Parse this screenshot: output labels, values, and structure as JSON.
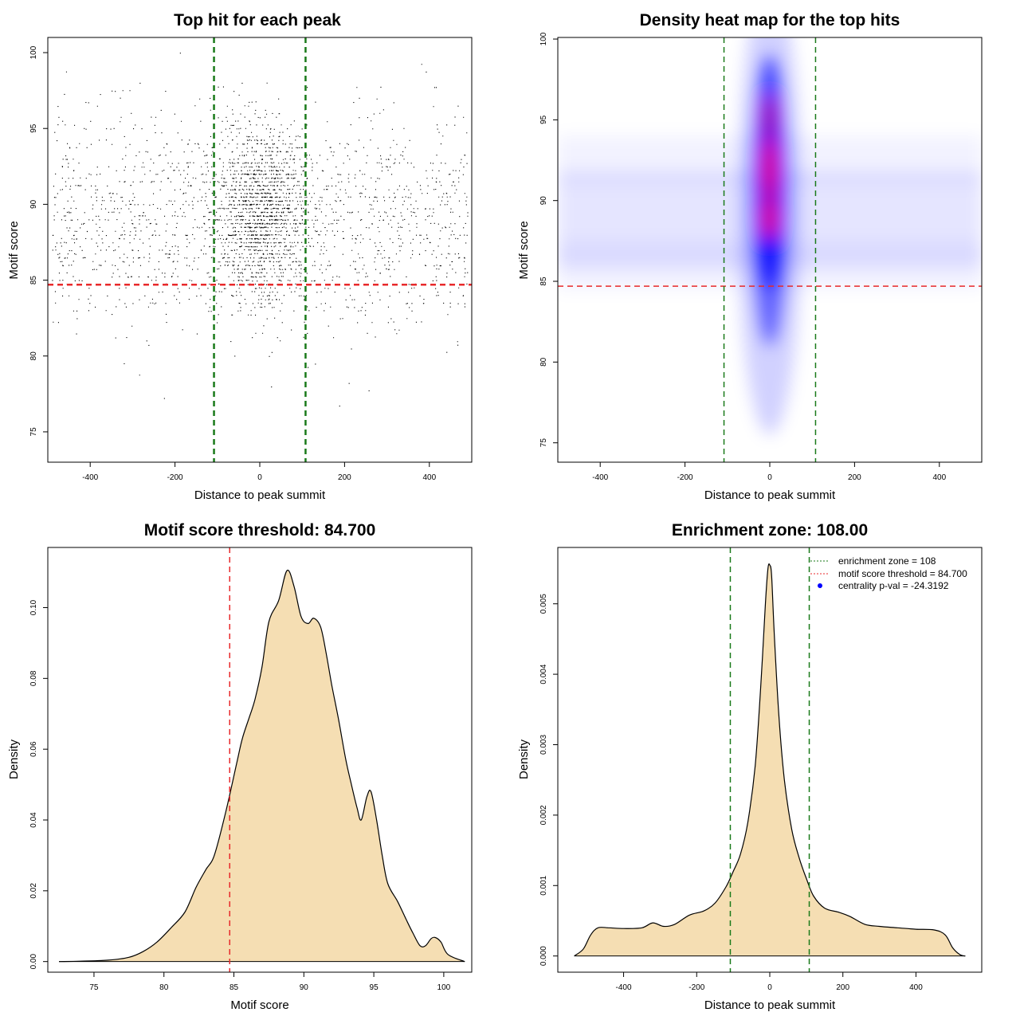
{
  "chart_data": [
    {
      "id": "scatter",
      "type": "scatter",
      "title": "Top hit for each peak",
      "xlabel": "Distance to peak summit",
      "ylabel": "Motif score",
      "xlim": [
        -500,
        500
      ],
      "ylim": [
        73,
        101
      ],
      "xticks": [
        -400,
        -200,
        0,
        200,
        400
      ],
      "yticks": [
        75,
        80,
        85,
        90,
        95,
        100
      ],
      "hlines": [
        {
          "y": 84.7,
          "color": "#e8292b",
          "style": "dashed"
        }
      ],
      "vlines": [
        {
          "x": -108,
          "color": "#1a7a1a",
          "style": "dashed"
        },
        {
          "x": 108,
          "color": "#1a7a1a",
          "style": "dashed"
        }
      ],
      "points": {
        "n": 9000,
        "description_of_distribution": "concentrated at x=0, y mean ~89.5"
      }
    },
    {
      "id": "heatmap",
      "type": "heatmap",
      "title": "Density heat map for the top hits",
      "xlabel": "Distance to peak summit",
      "ylabel": "Motif score",
      "xlim": [
        -500,
        500
      ],
      "ylim": [
        73.8,
        100.1
      ],
      "xticks": [
        -400,
        -200,
        0,
        200,
        400
      ],
      "yticks": [
        75,
        80,
        85,
        90,
        95,
        100
      ],
      "hlines": [
        {
          "y": 84.7,
          "color": "#e8292b",
          "style": "dashed"
        }
      ],
      "vlines": [
        {
          "x": -108,
          "color": "#1a7a1a",
          "style": "dashed"
        },
        {
          "x": 108,
          "color": "#1a7a1a",
          "style": "dashed"
        }
      ],
      "density_peaks": [
        {
          "x": 0,
          "y": 89
        },
        {
          "x": 0,
          "y": 91.5
        },
        {
          "x": 0,
          "y": 95
        }
      ]
    },
    {
      "id": "motif_density",
      "type": "area",
      "title": "Motif score threshold: 84.700",
      "xlabel": "Motif score",
      "ylabel": "Density",
      "xlim": [
        71.7,
        102
      ],
      "ylim": [
        -0.003,
        0.117
      ],
      "xticks": [
        75,
        80,
        85,
        90,
        95,
        100
      ],
      "yticks": [
        0.0,
        0.02,
        0.04,
        0.06,
        0.08,
        0.1
      ],
      "ytick_labels": [
        "0.00",
        "0.02",
        "0.04",
        "0.06",
        "0.08",
        "0.10"
      ],
      "vlines": [
        {
          "x": 84.7,
          "color": "#e8292b",
          "style": "dashed"
        }
      ],
      "x": [
        72.5,
        74,
        76,
        77.5,
        78.5,
        79.5,
        80.5,
        81.5,
        82.3,
        83,
        83.6,
        84.4,
        85.2,
        85.6,
        86.1,
        86.5,
        87,
        87.5,
        88.2,
        88.8,
        89.3,
        89.8,
        90.3,
        90.7,
        91.2,
        91.6,
        92,
        92.5,
        93,
        93.4,
        93.8,
        94.1,
        94.5,
        94.8,
        95.2,
        95.6,
        96,
        96.7,
        97.3,
        97.8,
        98.3,
        98.7,
        99.1,
        99.4,
        99.8,
        100.3,
        101.5
      ],
      "y": [
        0.0,
        0.0001,
        0.0004,
        0.0012,
        0.0028,
        0.0055,
        0.0095,
        0.014,
        0.021,
        0.026,
        0.03,
        0.042,
        0.056,
        0.063,
        0.069,
        0.074,
        0.083,
        0.096,
        0.102,
        0.1105,
        0.106,
        0.0975,
        0.0955,
        0.097,
        0.0945,
        0.087,
        0.078,
        0.068,
        0.057,
        0.05,
        0.0435,
        0.04,
        0.0465,
        0.048,
        0.04,
        0.03,
        0.022,
        0.017,
        0.012,
        0.008,
        0.0045,
        0.0045,
        0.0065,
        0.0068,
        0.0055,
        0.002,
        0.0
      ]
    },
    {
      "id": "enrichment",
      "type": "area",
      "title": "Enrichment zone: 108.00",
      "xlabel": "Distance to peak summit",
      "ylabel": "Density",
      "xlim": [
        -580,
        580
      ],
      "ylim": [
        -0.00023,
        0.0058
      ],
      "xticks": [
        -400,
        -200,
        0,
        200,
        400
      ],
      "yticks": [
        0.0,
        0.001,
        0.002,
        0.003,
        0.004,
        0.005
      ],
      "ytick_labels": [
        "0.000",
        "0.001",
        "0.002",
        "0.003",
        "0.004",
        "0.005"
      ],
      "vlines": [
        {
          "x": -108,
          "color": "#1a7a1a",
          "style": "dashed"
        },
        {
          "x": 108,
          "color": "#1a7a1a",
          "style": "dashed"
        }
      ],
      "x": [
        -535,
        -510,
        -490,
        -470,
        -440,
        -400,
        -350,
        -320,
        -290,
        -260,
        -220,
        -180,
        -150,
        -120,
        -100,
        -80,
        -60,
        -40,
        -25,
        -12,
        -5,
        0,
        5,
        12,
        25,
        40,
        60,
        80,
        100,
        120,
        150,
        190,
        220,
        260,
        300,
        350,
        400,
        450,
        480,
        500,
        520,
        535
      ],
      "y": [
        0.0,
        0.0001,
        0.0003,
        0.0004,
        0.0004,
        0.00039,
        0.0004,
        0.00047,
        0.00042,
        0.00045,
        0.00058,
        0.00064,
        0.00075,
        0.00098,
        0.0012,
        0.00145,
        0.0019,
        0.0027,
        0.0038,
        0.005,
        0.0055,
        0.00555,
        0.0054,
        0.0046,
        0.0034,
        0.0025,
        0.0018,
        0.0014,
        0.0011,
        0.00085,
        0.00068,
        0.00062,
        0.00056,
        0.00045,
        0.00042,
        0.0004,
        0.00038,
        0.00037,
        0.0003,
        0.00012,
        2e-05,
        0.0
      ],
      "legend": [
        {
          "label": "enrichment zone = 108",
          "color": "#1a7a1a",
          "symbol": "dotted-line"
        },
        {
          "label": "motif score threshold = 84.700",
          "color": "#e8292b",
          "symbol": "dotted-line"
        },
        {
          "label": "centrality p-val = -24.3192",
          "color": "#0000ff",
          "symbol": "dot"
        }
      ]
    }
  ],
  "colors": {
    "fill": "#f5deb3",
    "green": "#1a7a1a",
    "red": "#e8292b",
    "blue": "#0000ff"
  }
}
